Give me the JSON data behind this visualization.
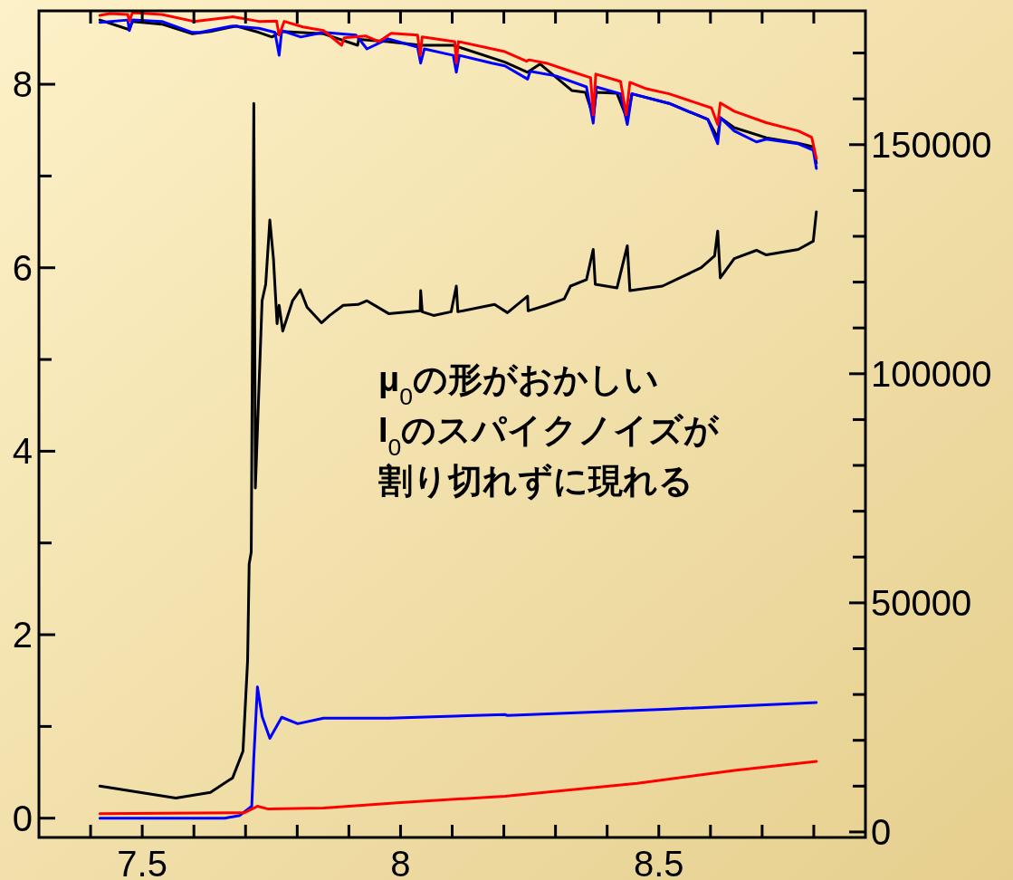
{
  "chart_data": {
    "type": "line",
    "xlim": [
      7.3,
      8.9
    ],
    "ylim": [
      -0.21,
      8.8
    ],
    "y2lim": [
      -1200,
      179200
    ],
    "xticks": [
      {
        "value": 7.4,
        "label": null
      },
      7.5,
      {
        "value": 7.6,
        "label": null
      },
      {
        "value": 7.7,
        "label": null
      },
      {
        "value": 7.8,
        "label": null
      },
      {
        "value": 7.9,
        "label": null
      },
      8,
      {
        "value": 8.1,
        "label": null
      },
      {
        "value": 8.2,
        "label": null
      },
      {
        "value": 8.3,
        "label": null
      },
      {
        "value": 8.4,
        "label": null
      },
      8.5,
      {
        "value": 8.6,
        "label": null
      },
      {
        "value": 8.7,
        "label": null
      },
      {
        "value": 8.8,
        "label": null
      }
    ],
    "yticks": [
      0,
      {
        "value": 1,
        "label": null
      },
      2,
      {
        "value": 3,
        "label": null
      },
      4,
      {
        "value": 5,
        "label": null
      },
      6,
      {
        "value": 7,
        "label": null
      },
      8
    ],
    "y2ticks": [
      0,
      {
        "value": 10000,
        "label": null
      },
      {
        "value": 20000,
        "label": null
      },
      {
        "value": 30000,
        "label": null
      },
      {
        "value": 40000,
        "label": null
      },
      50000,
      {
        "value": 60000,
        "label": null
      },
      {
        "value": 70000,
        "label": null
      },
      {
        "value": 80000,
        "label": null
      },
      {
        "value": 90000,
        "label": null
      },
      100000,
      {
        "value": 110000,
        "label": null
      },
      {
        "value": 120000,
        "label": null
      },
      {
        "value": 130000,
        "label": null
      },
      {
        "value": 140000,
        "label": null
      },
      150000,
      {
        "value": 160000,
        "label": null
      },
      {
        "value": 170000,
        "label": null
      }
    ],
    "grid": false,
    "annotations": [
      "μ$_{0}$の形がおかしい",
      "I$_{0}$のスパイクノイズが",
      "割り切れずに現れる"
    ],
    "series": [
      {
        "color": "#000000",
        "x": [
          7.418,
          7.565,
          7.632,
          7.675,
          7.695,
          7.704,
          7.707,
          7.711,
          7.716,
          7.719,
          7.732,
          7.739,
          7.747,
          7.754,
          7.761,
          7.765,
          7.772,
          7.791,
          7.806,
          7.819,
          7.847,
          7.863,
          7.889,
          7.918,
          7.935,
          7.977,
          8.038,
          8.039,
          8.042,
          8.064,
          8.098,
          8.108,
          8.111,
          8.182,
          8.207,
          8.246,
          8.247,
          8.282,
          8.317,
          8.329,
          8.36,
          8.373,
          8.377,
          8.419,
          8.439,
          8.444,
          8.507,
          8.582,
          8.608,
          8.614,
          8.619,
          8.646,
          8.689,
          8.708,
          8.77,
          8.799,
          8.805
        ],
        "values": [
          0.35,
          0.22,
          0.28,
          0.44,
          0.73,
          1.72,
          2.77,
          2.9,
          7.79,
          3.6,
          5.64,
          5.82,
          6.52,
          6.1,
          5.39,
          5.59,
          5.31,
          5.64,
          5.76,
          5.57,
          5.4,
          5.48,
          5.59,
          5.6,
          5.64,
          5.5,
          5.53,
          5.75,
          5.52,
          5.48,
          5.52,
          5.8,
          5.52,
          5.6,
          5.51,
          5.69,
          5.53,
          5.59,
          5.66,
          5.8,
          5.87,
          6.2,
          5.82,
          5.78,
          6.24,
          5.75,
          5.8,
          6.0,
          6.13,
          6.4,
          5.89,
          6.1,
          6.19,
          6.14,
          6.2,
          6.29,
          6.61
        ]
      },
      {
        "color": "#0000ff",
        "x": [
          7.418,
          7.66,
          7.689,
          7.712,
          7.716,
          7.723,
          7.732,
          7.747,
          7.77,
          7.801,
          7.851,
          7.977,
          8.202,
          8.207,
          8.52,
          8.805
        ],
        "values": [
          0.0,
          0.0,
          0.03,
          0.13,
          0.66,
          1.43,
          1.11,
          0.87,
          1.1,
          1.03,
          1.09,
          1.09,
          1.13,
          1.12,
          1.19,
          1.26
        ]
      },
      {
        "color": "#ff0000",
        "x": [
          7.418,
          7.698,
          7.723,
          7.744,
          7.851,
          8.0,
          8.202,
          8.458,
          8.646,
          8.805
        ],
        "values": [
          0.05,
          0.06,
          0.13,
          0.1,
          0.11,
          0.17,
          0.24,
          0.38,
          0.52,
          0.62
        ]
      },
      {
        "color": "#000000",
        "axis": "y2",
        "x": [
          7.418,
          7.475,
          7.481,
          7.538,
          7.597,
          7.632,
          7.682,
          7.726,
          7.751,
          7.77,
          7.851,
          7.917,
          7.919,
          7.976,
          8.039,
          8.102,
          8.202,
          8.246,
          8.27,
          8.332,
          8.358,
          8.373,
          8.379,
          8.419,
          8.439,
          8.448,
          8.52,
          8.595,
          8.614,
          8.619,
          8.646,
          8.708,
          8.77,
          8.799,
          8.805
        ],
        "values": [
          177200,
          175100,
          176900,
          176300,
          174200,
          174700,
          175900,
          174500,
          173500,
          174700,
          174200,
          171700,
          173000,
          172500,
          171700,
          171700,
          168000,
          165800,
          167600,
          161800,
          161400,
          156200,
          161400,
          161200,
          155500,
          161100,
          159000,
          155500,
          151500,
          155900,
          153700,
          151500,
          150300,
          149500,
          146000
        ]
      },
      {
        "color": "#0000ff",
        "axis": "y2",
        "x": [
          7.418,
          7.472,
          7.475,
          7.481,
          7.538,
          7.597,
          7.612,
          7.675,
          7.726,
          7.757,
          7.765,
          7.77,
          7.807,
          7.851,
          7.914,
          7.935,
          7.976,
          8.033,
          8.039,
          8.046,
          8.102,
          8.108,
          8.114,
          8.177,
          8.202,
          8.246,
          8.251,
          8.301,
          8.36,
          8.373,
          8.379,
          8.426,
          8.439,
          8.448,
          8.52,
          8.595,
          8.614,
          8.619,
          8.646,
          8.689,
          8.708,
          8.77,
          8.799,
          8.805
        ],
        "values": [
          176700,
          177200,
          174900,
          177200,
          176900,
          174500,
          174500,
          175900,
          175400,
          174500,
          169500,
          174900,
          173500,
          174500,
          173900,
          170900,
          173100,
          171300,
          167800,
          170900,
          169500,
          165800,
          169500,
          167800,
          167200,
          164300,
          166000,
          165000,
          162600,
          154700,
          162600,
          161100,
          154400,
          161100,
          159000,
          155500,
          150200,
          155900,
          153000,
          150600,
          151200,
          150200,
          148800,
          144800
        ]
      },
      {
        "color": "#ff0000",
        "axis": "y2",
        "x": [
          7.418,
          7.437,
          7.472,
          7.475,
          7.481,
          7.538,
          7.6,
          7.675,
          7.726,
          7.76,
          7.765,
          7.775,
          7.811,
          7.851,
          7.886,
          7.891,
          7.933,
          7.958,
          7.982,
          8.033,
          8.038,
          8.042,
          8.105,
          8.108,
          8.112,
          8.202,
          8.244,
          8.249,
          8.282,
          8.319,
          8.368,
          8.373,
          8.378,
          8.426,
          8.437,
          8.444,
          8.476,
          8.52,
          8.602,
          8.614,
          8.619,
          8.646,
          8.708,
          8.77,
          8.796,
          8.805
        ],
        "values": [
          178200,
          178600,
          178400,
          177000,
          178800,
          178400,
          176900,
          177900,
          176900,
          177000,
          173900,
          176900,
          175700,
          174900,
          171700,
          173300,
          173700,
          172500,
          174300,
          173900,
          169500,
          173500,
          172500,
          167800,
          172500,
          170300,
          168200,
          168500,
          167800,
          166400,
          164600,
          156500,
          165400,
          163800,
          156500,
          163600,
          162200,
          161100,
          158000,
          154400,
          159100,
          157300,
          154800,
          153000,
          151600,
          147000
        ]
      }
    ]
  }
}
